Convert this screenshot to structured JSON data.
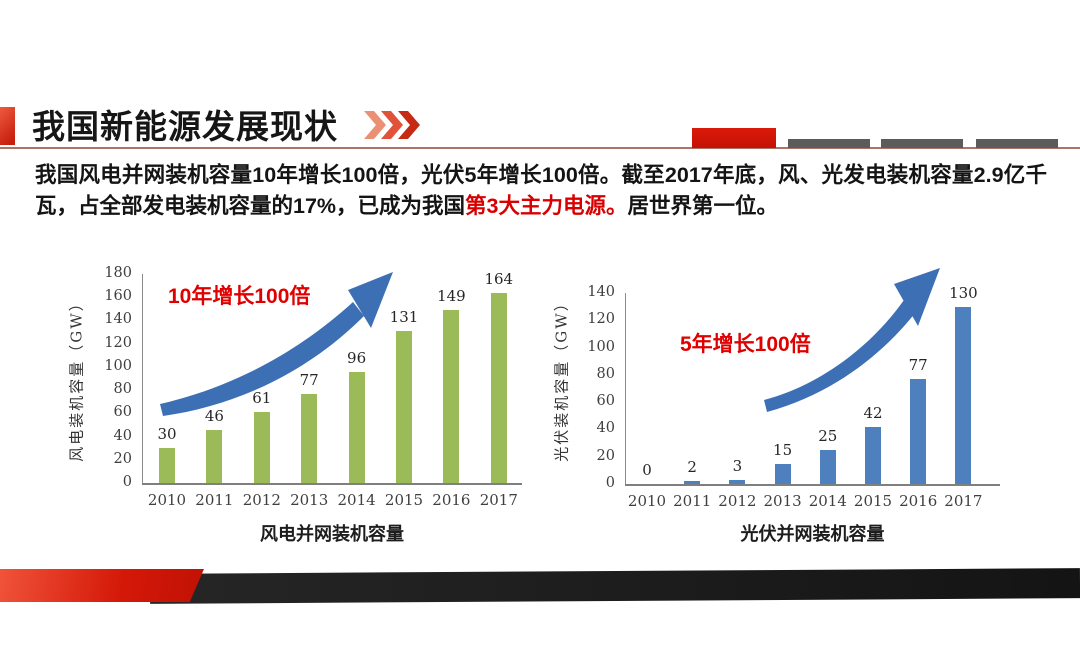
{
  "header": {
    "title": "我国新能源发展现状"
  },
  "intro": {
    "part1": "我国风电并网装机容量10年增长100倍，光伏5年增长100倍。截至2017年底，风、光发电装机容量2.9亿千瓦，占全部发电装机容量的17%，已成为我国",
    "highlight": "第3大主力电源。",
    "part2": "居世界第一位。"
  },
  "chart_data": [
    {
      "type": "bar",
      "title": "风电并网装机容量",
      "ylabel": "风电装机容量（GW）",
      "categories": [
        "2010",
        "2011",
        "2012",
        "2013",
        "2014",
        "2015",
        "2016",
        "2017"
      ],
      "values": [
        30,
        46,
        61,
        77,
        96,
        131,
        149,
        164
      ],
      "ylim": [
        0,
        180
      ],
      "ytick_step": 20,
      "grid": false,
      "legend": "none",
      "annotation": "10年增长100倍",
      "bar_color": "#9bbb59"
    },
    {
      "type": "bar",
      "title": "光伏并网装机容量",
      "ylabel": "光伏装机容量（GW）",
      "categories": [
        "2010",
        "2011",
        "2012",
        "2013",
        "2014",
        "2015",
        "2016",
        "2017"
      ],
      "values": [
        0,
        2,
        3,
        15,
        25,
        42,
        77,
        130
      ],
      "ylim": [
        0,
        140
      ],
      "ytick_step": 20,
      "grid": false,
      "legend": "none",
      "annotation": "5年增长100倍",
      "bar_color": "#4d80bd"
    }
  ],
  "colors": {
    "annotation_red": "#e00000",
    "highlight_red": "#d80000",
    "arrow_blue": "#3d6fb5",
    "accent_red": "#d92a17",
    "underline": "#aa7468",
    "deco_gray": "#5b5b5b",
    "deco_red": "#cf1507",
    "footer_dark": "#1c1c1c",
    "footer_red": "#d6190a",
    "chevron1": "#ec9075",
    "chevron2": "#e0523a",
    "chevron3": "#c62a15"
  }
}
